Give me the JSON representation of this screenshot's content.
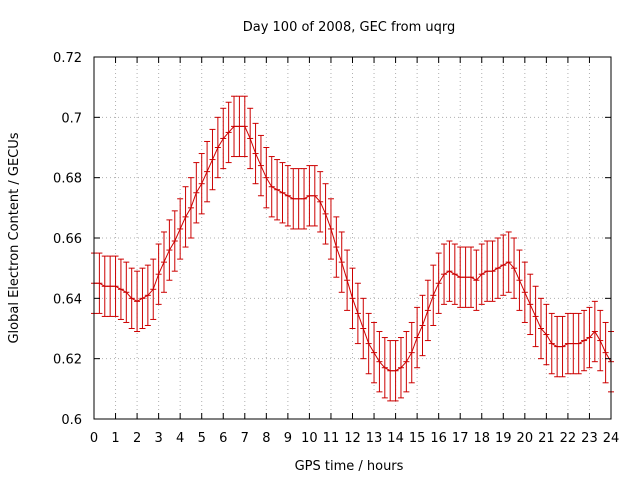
{
  "chart_data": {
    "type": "line",
    "title": "Day 100 of 2008, GEC from uqrg",
    "xlabel": "GPS time / hours",
    "ylabel": "Global Electron Content / GECUs",
    "xlim": [
      0,
      24
    ],
    "ylim": [
      0.6,
      0.72
    ],
    "xticks": [
      "0",
      "1",
      "2",
      "3",
      "4",
      "5",
      "6",
      "7",
      "8",
      "9",
      "10",
      "11",
      "12",
      "13",
      "14",
      "15",
      "16",
      "17",
      "18",
      "19",
      "20",
      "21",
      "22",
      "23",
      "24"
    ],
    "yticks": [
      "0.6",
      "0.62",
      "0.64",
      "0.66",
      "0.68",
      "0.7",
      "0.72"
    ],
    "grid": true,
    "series_color": "#cc0000",
    "error": 0.01,
    "x": [
      0,
      0.25,
      0.5,
      0.75,
      1,
      1.25,
      1.5,
      1.75,
      2,
      2.25,
      2.5,
      2.75,
      3,
      3.25,
      3.5,
      3.75,
      4,
      4.25,
      4.5,
      4.75,
      5,
      5.25,
      5.5,
      5.75,
      6,
      6.25,
      6.5,
      6.75,
      7,
      7.25,
      7.5,
      7.75,
      8,
      8.25,
      8.5,
      8.75,
      9,
      9.25,
      9.5,
      9.75,
      10,
      10.25,
      10.5,
      10.75,
      11,
      11.25,
      11.5,
      11.75,
      12,
      12.25,
      12.5,
      12.75,
      13,
      13.25,
      13.5,
      13.75,
      14,
      14.25,
      14.5,
      14.75,
      15,
      15.25,
      15.5,
      15.75,
      16,
      16.25,
      16.5,
      16.75,
      17,
      17.25,
      17.5,
      17.75,
      18,
      18.25,
      18.5,
      18.75,
      19,
      19.25,
      19.5,
      19.75,
      20,
      20.25,
      20.5,
      20.75,
      21,
      21.25,
      21.5,
      21.75,
      22,
      22.25,
      22.5,
      22.75,
      23,
      23.25,
      23.5,
      23.75,
      24
    ],
    "values": [
      0.645,
      0.645,
      0.644,
      0.644,
      0.644,
      0.643,
      0.642,
      0.64,
      0.639,
      0.64,
      0.641,
      0.643,
      0.648,
      0.652,
      0.656,
      0.659,
      0.663,
      0.667,
      0.67,
      0.675,
      0.678,
      0.682,
      0.686,
      0.69,
      0.693,
      0.695,
      0.697,
      0.697,
      0.697,
      0.693,
      0.688,
      0.684,
      0.68,
      0.677,
      0.676,
      0.675,
      0.674,
      0.673,
      0.673,
      0.673,
      0.674,
      0.674,
      0.672,
      0.668,
      0.663,
      0.657,
      0.652,
      0.646,
      0.64,
      0.635,
      0.63,
      0.625,
      0.622,
      0.619,
      0.617,
      0.616,
      0.616,
      0.617,
      0.619,
      0.622,
      0.627,
      0.631,
      0.636,
      0.641,
      0.645,
      0.648,
      0.649,
      0.648,
      0.647,
      0.647,
      0.647,
      0.646,
      0.648,
      0.649,
      0.649,
      0.65,
      0.651,
      0.652,
      0.65,
      0.646,
      0.642,
      0.638,
      0.634,
      0.63,
      0.628,
      0.625,
      0.624,
      0.624,
      0.625,
      0.625,
      0.625,
      0.626,
      0.627,
      0.629,
      0.626,
      0.622,
      0.619
    ]
  }
}
